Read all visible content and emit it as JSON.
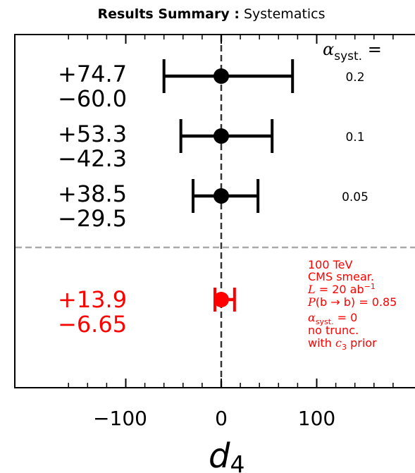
{
  "chart_data": {
    "type": "errorbar",
    "title_bold": "Results Summary :",
    "title_rest": " Systematics",
    "xlabel": "d",
    "xlabel_sub": "4",
    "xlim": [
      -180,
      180
    ],
    "x_ticks": [
      -100,
      0,
      100
    ],
    "x_tick_labels": [
      "−100",
      "0",
      "100"
    ],
    "grid": false,
    "reference_line_x": 0,
    "alpha_header": "α",
    "alpha_header_sub": "syst.",
    "alpha_header_eq": " =",
    "rows": [
      {
        "center": 0,
        "upper": 74.7,
        "lower": 60.0,
        "upper_label": "+74.7",
        "lower_label": "−60.0",
        "alpha_label": "0.2",
        "color": "#000000"
      },
      {
        "center": 0,
        "upper": 53.3,
        "lower": 42.3,
        "upper_label": "+53.3",
        "lower_label": "−42.3",
        "alpha_label": "0.1",
        "color": "#000000"
      },
      {
        "center": 0,
        "upper": 38.5,
        "lower": 29.5,
        "upper_label": "+38.5",
        "lower_label": "−29.5",
        "alpha_label": "0.05",
        "color": "#000000"
      },
      {
        "center": 0,
        "upper": 13.9,
        "lower": 6.65,
        "upper_label": "+13.9",
        "lower_label": "−6.65",
        "alpha_label": "",
        "color": "#ff0000"
      }
    ],
    "annotation": {
      "color": "#ff0000",
      "line1": "100 TeV",
      "line2": "CMS smear.",
      "line3_a": "L",
      "line3_b": " = 20 ab",
      "line3_sup": "−1",
      "line4_a": "P",
      "line4_b": "(b → b) = 0.85",
      "line5_a": "α",
      "line5_sub": "syst.",
      "line5_b": " = 0",
      "line6": "no trunc.",
      "line7_a": "with ",
      "line7_c": "c",
      "line7_sub": "3",
      "line7_b": " prior"
    }
  }
}
